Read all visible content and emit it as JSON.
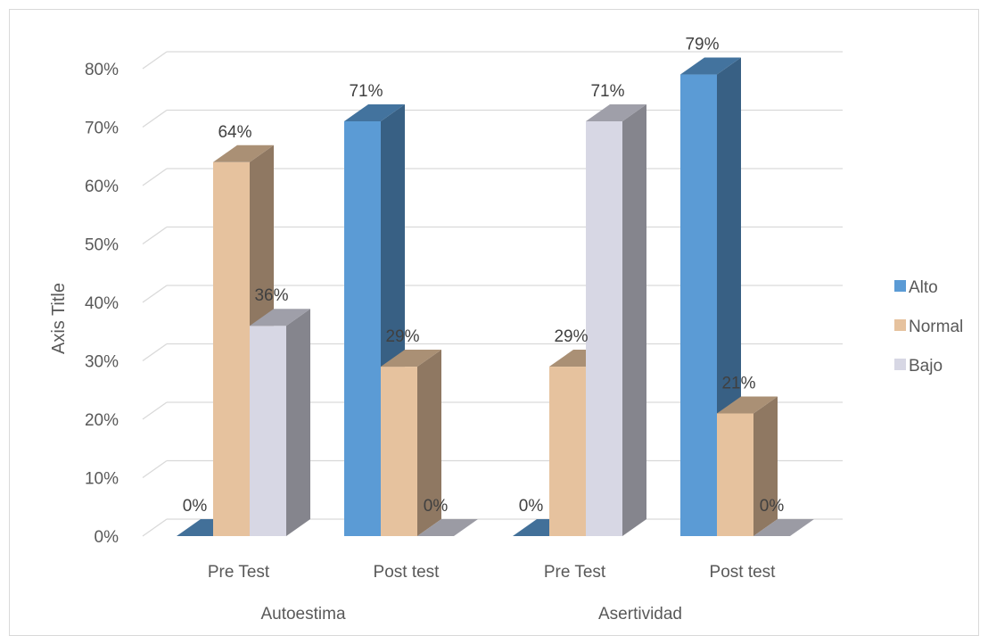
{
  "chart_data": {
    "type": "bar",
    "variant": "3d-clustered",
    "ylabel": "Axis Title",
    "ylim": [
      0,
      80
    ],
    "yticks": [
      "0%",
      "10%",
      "20%",
      "30%",
      "40%",
      "50%",
      "60%",
      "70%",
      "80%"
    ],
    "grid": true,
    "legend_position": "right",
    "groups": [
      {
        "label": "Autoestima",
        "categories": [
          "Pre Test",
          "Post test"
        ]
      },
      {
        "label": "Asertividad",
        "categories": [
          "Pre Test",
          "Post test"
        ]
      }
    ],
    "categories": [
      "Pre Test",
      "Post test",
      "Pre Test",
      "Post test"
    ],
    "series": [
      {
        "name": "Alto",
        "color": "#5b9bd5",
        "values": [
          0,
          71,
          0,
          79
        ],
        "labels": [
          "0%",
          "71%",
          "0%",
          "79%"
        ]
      },
      {
        "name": "Normal",
        "color": "#e6c29e",
        "values": [
          64,
          29,
          29,
          21
        ],
        "labels": [
          "64%",
          "29%",
          "29%",
          "21%"
        ]
      },
      {
        "name": "Bajo",
        "color": "#d7d7e4",
        "values": [
          36,
          0,
          71,
          0
        ],
        "labels": [
          "36%",
          "0%",
          "71%",
          "0%"
        ]
      }
    ]
  }
}
